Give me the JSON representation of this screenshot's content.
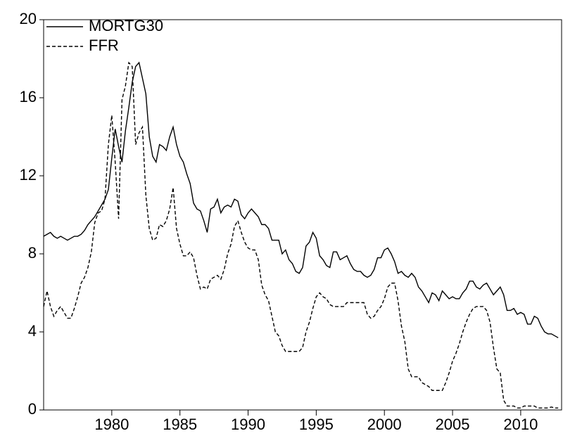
{
  "chart_data": {
    "type": "line",
    "x": [
      1975,
      1975.25,
      1975.5,
      1975.75,
      1976,
      1976.25,
      1976.5,
      1976.75,
      1977,
      1977.25,
      1977.5,
      1977.75,
      1978,
      1978.25,
      1978.5,
      1978.75,
      1979,
      1979.25,
      1979.5,
      1979.75,
      1980,
      1980.25,
      1980.5,
      1980.75,
      1981,
      1981.25,
      1981.5,
      1981.75,
      1982,
      1982.25,
      1982.5,
      1982.75,
      1983,
      1983.25,
      1983.5,
      1983.75,
      1984,
      1984.25,
      1984.5,
      1984.75,
      1985,
      1985.25,
      1985.5,
      1985.75,
      1986,
      1986.25,
      1986.5,
      1986.75,
      1987,
      1987.25,
      1987.5,
      1987.75,
      1988,
      1988.25,
      1988.5,
      1988.75,
      1989,
      1989.25,
      1989.5,
      1989.75,
      1990,
      1990.25,
      1990.5,
      1990.75,
      1991,
      1991.25,
      1991.5,
      1991.75,
      1992,
      1992.25,
      1992.5,
      1992.75,
      1993,
      1993.25,
      1993.5,
      1993.75,
      1994,
      1994.25,
      1994.5,
      1994.75,
      1995,
      1995.25,
      1995.5,
      1995.75,
      1996,
      1996.25,
      1996.5,
      1996.75,
      1997,
      1997.25,
      1997.5,
      1997.75,
      1998,
      1998.25,
      1998.5,
      1998.75,
      1999,
      1999.25,
      1999.5,
      1999.75,
      2000,
      2000.25,
      2000.5,
      2000.75,
      2001,
      2001.25,
      2001.5,
      2001.75,
      2002,
      2002.25,
      2002.5,
      2002.75,
      2003,
      2003.25,
      2003.5,
      2003.75,
      2004,
      2004.25,
      2004.5,
      2004.75,
      2005,
      2005.25,
      2005.5,
      2005.75,
      2006,
      2006.25,
      2006.5,
      2006.75,
      2007,
      2007.25,
      2007.5,
      2007.75,
      2008,
      2008.25,
      2008.5,
      2008.75,
      2009,
      2009.25,
      2009.5,
      2009.75,
      2010,
      2010.25,
      2010.5,
      2010.75,
      2011,
      2011.25,
      2011.5,
      2011.75,
      2012,
      2012.25,
      2012.5,
      2012.75
    ],
    "series": [
      {
        "name": "MORTG30",
        "color": "#000000",
        "style": "solid",
        "values": [
          8.9,
          9.0,
          9.1,
          8.9,
          8.8,
          8.9,
          8.8,
          8.7,
          8.8,
          8.9,
          8.9,
          9.0,
          9.2,
          9.5,
          9.7,
          9.9,
          10.2,
          10.5,
          10.8,
          11.3,
          12.9,
          14.4,
          13.5,
          12.7,
          14.3,
          15.5,
          16.8,
          17.6,
          17.8,
          17.0,
          16.2,
          14.0,
          13.0,
          12.7,
          13.6,
          13.5,
          13.3,
          14.0,
          14.5,
          13.6,
          13.0,
          12.7,
          12.1,
          11.6,
          10.6,
          10.3,
          10.2,
          9.7,
          9.1,
          10.3,
          10.4,
          10.8,
          10.1,
          10.4,
          10.5,
          10.4,
          10.8,
          10.7,
          10.0,
          9.8,
          10.1,
          10.3,
          10.1,
          9.9,
          9.5,
          9.5,
          9.3,
          8.7,
          8.7,
          8.7,
          8.0,
          8.2,
          7.7,
          7.5,
          7.1,
          7.0,
          7.3,
          8.4,
          8.6,
          9.1,
          8.8,
          7.9,
          7.7,
          7.4,
          7.3,
          8.1,
          8.1,
          7.7,
          7.8,
          7.9,
          7.5,
          7.2,
          7.1,
          7.1,
          6.9,
          6.8,
          6.9,
          7.2,
          7.8,
          7.8,
          8.2,
          8.3,
          8.0,
          7.6,
          7.0,
          7.1,
          6.9,
          6.8,
          7.0,
          6.8,
          6.3,
          6.1,
          5.8,
          5.5,
          6.0,
          5.9,
          5.6,
          6.1,
          5.9,
          5.7,
          5.8,
          5.7,
          5.7,
          6.0,
          6.2,
          6.6,
          6.6,
          6.3,
          6.2,
          6.4,
          6.5,
          6.2,
          5.9,
          6.1,
          6.3,
          5.9,
          5.1,
          5.1,
          5.2,
          4.9,
          5.0,
          4.9,
          4.4,
          4.4,
          4.8,
          4.7,
          4.3,
          4.0,
          3.9,
          3.9,
          3.8,
          3.7
        ]
      },
      {
        "name": "FFR",
        "color": "#000000",
        "style": "dashed",
        "values": [
          5.3,
          6.1,
          5.3,
          4.8,
          5.1,
          5.3,
          5.0,
          4.7,
          4.7,
          5.2,
          5.8,
          6.5,
          6.8,
          7.3,
          8.1,
          9.6,
          10.1,
          10.2,
          10.8,
          13.6,
          15.1,
          12.7,
          9.8,
          15.9,
          16.6,
          17.8,
          17.6,
          13.6,
          14.2,
          14.5,
          11.0,
          9.3,
          8.7,
          8.8,
          9.5,
          9.4,
          9.7,
          10.3,
          11.4,
          9.3,
          8.5,
          7.9,
          7.9,
          8.1,
          7.8,
          6.9,
          6.2,
          6.3,
          6.2,
          6.7,
          6.8,
          6.9,
          6.7,
          7.2,
          8.0,
          8.5,
          9.4,
          9.7,
          9.1,
          8.6,
          8.3,
          8.2,
          8.2,
          7.7,
          6.4,
          5.9,
          5.6,
          4.8,
          4.0,
          3.8,
          3.3,
          3.0,
          3.0,
          3.0,
          3.0,
          3.0,
          3.2,
          4.0,
          4.5,
          5.2,
          5.8,
          6.0,
          5.8,
          5.7,
          5.4,
          5.3,
          5.3,
          5.3,
          5.3,
          5.5,
          5.5,
          5.5,
          5.5,
          5.5,
          5.5,
          4.9,
          4.7,
          4.8,
          5.1,
          5.3,
          5.7,
          6.3,
          6.5,
          6.5,
          5.6,
          4.3,
          3.5,
          2.1,
          1.7,
          1.7,
          1.7,
          1.4,
          1.3,
          1.2,
          1.0,
          1.0,
          1.0,
          1.0,
          1.4,
          1.9,
          2.5,
          2.9,
          3.4,
          4.0,
          4.5,
          4.9,
          5.2,
          5.3,
          5.3,
          5.3,
          5.1,
          4.5,
          3.2,
          2.1,
          1.9,
          0.5,
          0.2,
          0.2,
          0.2,
          0.1,
          0.1,
          0.2,
          0.2,
          0.2,
          0.2,
          0.1,
          0.1,
          0.1,
          0.1,
          0.15,
          0.1,
          0.1
        ]
      }
    ],
    "xlim": [
      1975,
      2013
    ],
    "xticks": [
      1980,
      1985,
      1990,
      1995,
      2000,
      2005,
      2010
    ],
    "ylim": [
      0,
      20
    ],
    "yticks": [
      0,
      4,
      8,
      12,
      16,
      20
    ],
    "legend": "top-left"
  }
}
